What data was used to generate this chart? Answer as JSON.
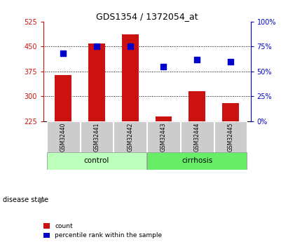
{
  "title": "GDS1354 / 1372054_at",
  "samples": [
    "GSM32440",
    "GSM32441",
    "GSM32442",
    "GSM32443",
    "GSM32444",
    "GSM32445"
  ],
  "counts": [
    365,
    460,
    488,
    240,
    315,
    280
  ],
  "percentiles": [
    68,
    75,
    75,
    55,
    62,
    60
  ],
  "baseline": 225,
  "ylim_left": [
    225,
    525
  ],
  "ylim_right": [
    0,
    100
  ],
  "yticks_left": [
    225,
    300,
    375,
    450,
    525
  ],
  "yticks_right": [
    0,
    25,
    50,
    75,
    100
  ],
  "bar_color": "#cc1111",
  "dot_color": "#0000cc",
  "control_color": "#bbffbb",
  "cirrhosis_color": "#66ee66",
  "tick_bg_color": "#cccccc",
  "bar_width": 0.5,
  "dot_size": 28
}
